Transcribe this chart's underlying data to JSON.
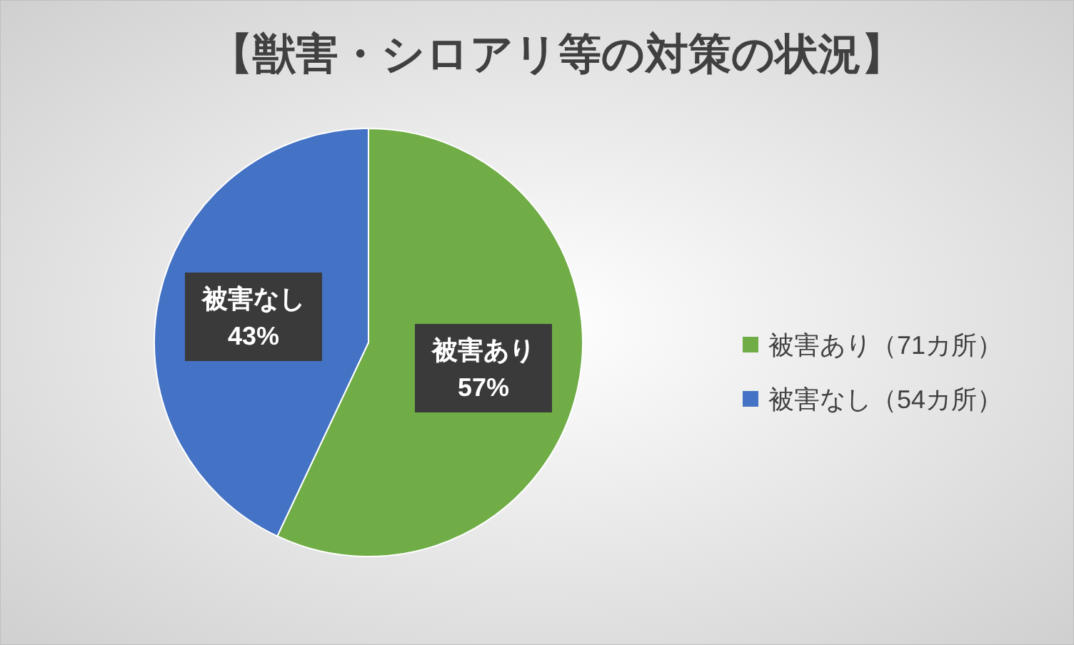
{
  "chart_data": {
    "type": "pie",
    "title": "【獣害・シロアリ等の対策の状況】",
    "categories": [
      "被害あり（71カ所）",
      "被害なし（54カ所）"
    ],
    "values": [
      57,
      43
    ],
    "colors": [
      "#70ad47",
      "#4472c4"
    ],
    "value_labels": [
      "被害あり\n57%",
      "被害なし\n43%"
    ],
    "legend": "right"
  }
}
